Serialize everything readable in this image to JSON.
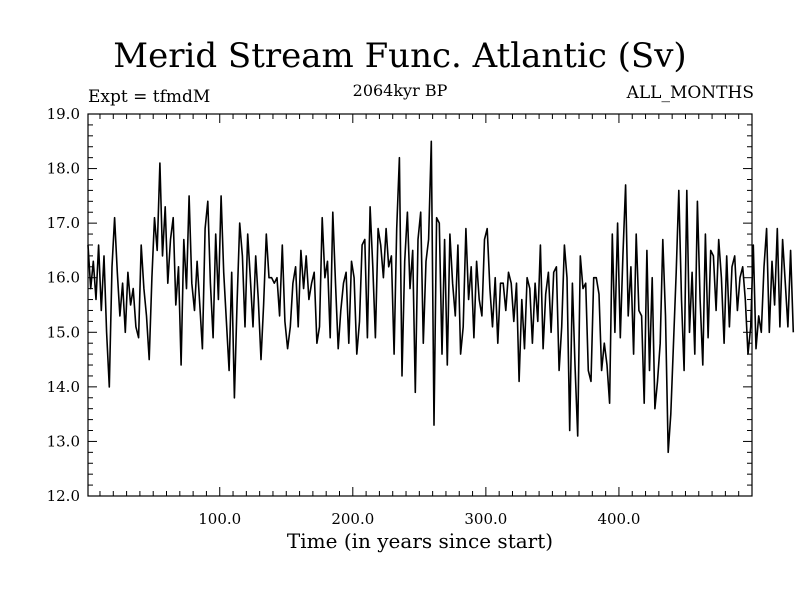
{
  "chart_data": {
    "type": "line",
    "title": "Merid Stream Func. Atlantic (Sv)",
    "subtitle": "2064kyr BP",
    "left_annotation": "Expt = tfmdM",
    "right_annotation": "ALL_MONTHS",
    "xlabel": "Time (in years since start)",
    "ylabel": "",
    "xlim": [
      1,
      500
    ],
    "ylim": [
      12.0,
      19.0
    ],
    "xticks": [
      100,
      200,
      300,
      400
    ],
    "xtick_labels": [
      "100.0",
      "200.0",
      "300.0",
      "400.0"
    ],
    "yticks": [
      12,
      13,
      14,
      15,
      16,
      17,
      18,
      19
    ],
    "ytick_labels": [
      "12.0",
      "13.0",
      "14.0",
      "15.0",
      "16.0",
      "17.0",
      "18.0",
      "19.0"
    ],
    "series": [
      {
        "name": "Merid Stream Func. Atlantic",
        "x_start": 1,
        "x_step": 2,
        "values": [
          16.6,
          15.8,
          16.3,
          15.6,
          16.6,
          15.4,
          16.4,
          15.0,
          14.0,
          16.2,
          17.1,
          16.1,
          15.3,
          15.9,
          15.0,
          16.1,
          15.5,
          15.8,
          15.1,
          14.9,
          16.6,
          15.8,
          15.3,
          14.5,
          16.0,
          17.1,
          16.5,
          18.1,
          16.4,
          17.3,
          15.9,
          16.7,
          17.1,
          15.5,
          16.2,
          14.4,
          16.7,
          15.8,
          17.5,
          15.9,
          15.4,
          16.3,
          15.5,
          14.7,
          16.9,
          17.4,
          15.9,
          14.9,
          16.8,
          15.6,
          17.5,
          16.1,
          15.2,
          14.3,
          16.1,
          13.8,
          15.5,
          17.0,
          16.4,
          15.1,
          16.8,
          16.0,
          15.1,
          16.4,
          15.6,
          14.5,
          15.5,
          16.8,
          16.0,
          16.0,
          15.9,
          16.0,
          15.3,
          16.6,
          15.2,
          14.7,
          15.1,
          15.9,
          16.2,
          15.1,
          16.5,
          15.8,
          16.4,
          15.6,
          15.9,
          16.1,
          14.8,
          15.1,
          17.1,
          16.0,
          16.3,
          14.9,
          17.2,
          15.9,
          14.7,
          15.4,
          15.9,
          16.1,
          14.8,
          16.3,
          16.0,
          14.6,
          15.2,
          16.6,
          16.7,
          14.9,
          17.3,
          16.2,
          14.9,
          16.9,
          16.6,
          16.0,
          16.9,
          16.2,
          16.4,
          14.6,
          16.9,
          18.2,
          14.2,
          16.3,
          17.2,
          15.8,
          16.5,
          13.9,
          16.7,
          17.2,
          14.8,
          16.3,
          16.7,
          18.5,
          13.3,
          17.1,
          17.0,
          14.6,
          16.7,
          14.4,
          16.8,
          15.9,
          15.3,
          16.6,
          14.6,
          15.1,
          16.9,
          15.6,
          16.2,
          14.9,
          16.3,
          15.6,
          15.3,
          16.7,
          16.9,
          15.8,
          15.1,
          16.0,
          14.8,
          15.9,
          15.9,
          15.4,
          16.1,
          15.9,
          15.2,
          15.9,
          14.1,
          15.6,
          14.7,
          16.0,
          15.8,
          14.8,
          15.9,
          15.2,
          16.6,
          14.7,
          15.7,
          16.1,
          15.0,
          16.1,
          16.2,
          14.3,
          15.1,
          16.6,
          16.0,
          13.2,
          15.9,
          14.4,
          13.1,
          16.4,
          15.8,
          15.9,
          14.3,
          14.1,
          16.0,
          16.0,
          15.7,
          14.3,
          14.8,
          14.4,
          13.7,
          16.8,
          15.0,
          17.0,
          14.9,
          16.4,
          17.7,
          15.3,
          16.2,
          14.6,
          16.8,
          15.4,
          15.3,
          13.7,
          16.5,
          14.3,
          16.0,
          13.6,
          14.1,
          14.8,
          16.7,
          15.3,
          12.8,
          13.5,
          14.8,
          16.1,
          17.6,
          15.6,
          14.3,
          17.6,
          15.0,
          16.1,
          14.6,
          17.4,
          15.6,
          14.4,
          16.8,
          14.9,
          16.5,
          16.4,
          15.4,
          16.7,
          16.0,
          14.8,
          16.4,
          15.1,
          16.2,
          16.4,
          15.4,
          16.0,
          16.2,
          15.6,
          14.6,
          15.1,
          16.6,
          14.7,
          15.3,
          15.0,
          16.2,
          16.9,
          15.0,
          16.3,
          15.5,
          16.9,
          15.1,
          16.7,
          15.9,
          15.1,
          16.5,
          15.0
        ]
      }
    ]
  }
}
